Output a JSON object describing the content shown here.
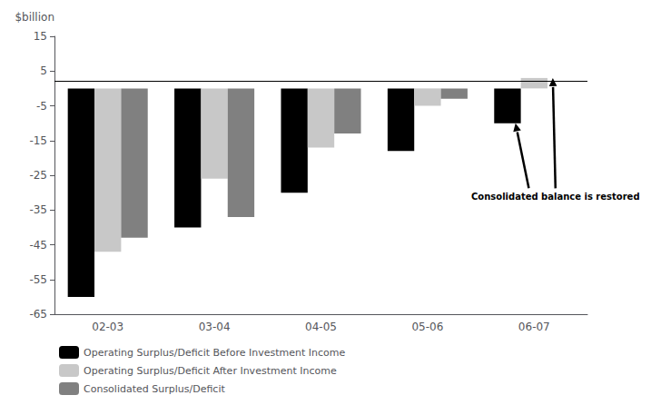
{
  "chart_data": {
    "type": "bar",
    "categories": [
      "02-03",
      "03-04",
      "04-05",
      "05-06",
      "06-07"
    ],
    "series": [
      {
        "name": "Operating Surplus/Deficit Before Investment Income",
        "color": "#000000",
        "values": [
          -60,
          -40,
          -30,
          -18,
          -10
        ]
      },
      {
        "name": "Operating Surplus/Deficit After Investment Income",
        "color": "#c8c8c8",
        "values": [
          -47,
          -26,
          -17,
          -5,
          3
        ]
      },
      {
        "name": "Consolidated Surplus/Deficit",
        "color": "#808080",
        "values": [
          -43,
          -37,
          -13,
          -3,
          null
        ]
      }
    ],
    "ylim": [
      -65,
      15
    ],
    "yticks": [
      -65,
      -55,
      -45,
      -35,
      -25,
      -15,
      -5,
      5,
      15
    ],
    "ylabel": "$billion",
    "reference_line": 2,
    "annotation": "Consolidated balance is restored",
    "legend": "bottom left",
    "grid": false
  }
}
